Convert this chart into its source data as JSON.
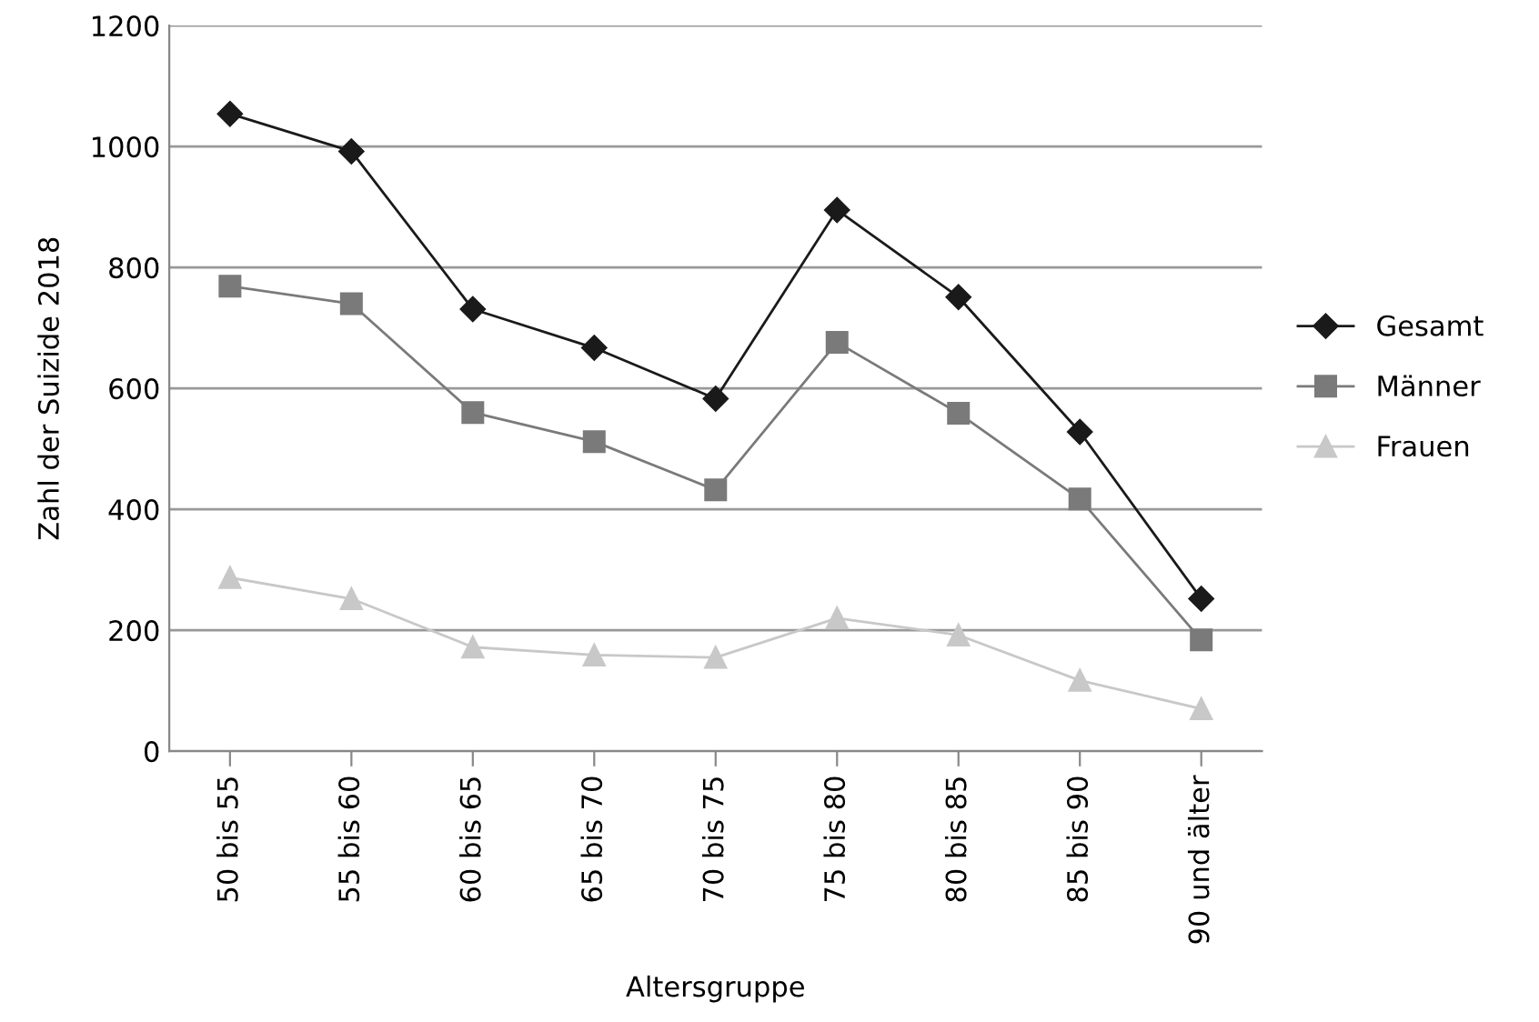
{
  "chart_data": {
    "type": "line",
    "xlabel": "Altersgruppe",
    "ylabel": "Zahl der Suizide 2018",
    "categories": [
      "50 bis 55",
      "55 bis 60",
      "60 bis 65",
      "65 bis 70",
      "70 bis 75",
      "75 bis 80",
      "80 bis 85",
      "85 bis 90",
      "90 und älter"
    ],
    "series": [
      {
        "name": "Gesamt",
        "color": "#1a1a1a",
        "marker": "diamond",
        "values": [
          1054,
          992,
          731,
          667,
          583,
          895,
          751,
          528,
          252
        ]
      },
      {
        "name": "Männer",
        "color": "#7a7a7a",
        "marker": "square",
        "values": [
          769,
          740,
          560,
          512,
          432,
          676,
          559,
          417,
          184
        ]
      },
      {
        "name": "Frauen",
        "color": "#c8c8c8",
        "marker": "triangle",
        "values": [
          287,
          252,
          172,
          159,
          155,
          220,
          192,
          117,
          70
        ]
      }
    ],
    "ylim": [
      0,
      1200
    ],
    "yticks": [
      0,
      200,
      400,
      600,
      800,
      1000,
      1200
    ],
    "grid": "y",
    "legend": "right",
    "line_style": "solid"
  }
}
